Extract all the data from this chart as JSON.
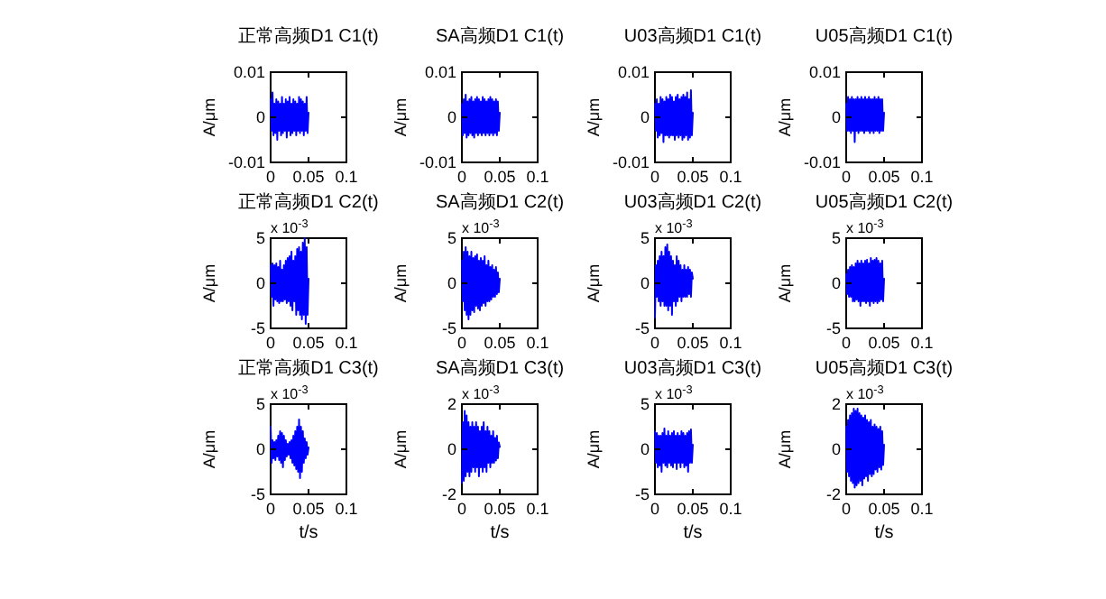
{
  "chart_data": [
    {
      "type": "line",
      "title": "正常高频D1 C1(t)",
      "ylabel": "A/μm",
      "x": [
        0,
        0.00125,
        0.0025,
        0.00375,
        0.005,
        0.00625,
        0.0075,
        0.00875,
        0.01,
        0.01125,
        0.0125,
        0.01375,
        0.015,
        0.01625,
        0.0175,
        0.01875,
        0.02,
        0.02125,
        0.0225,
        0.02375,
        0.025,
        0.02625,
        0.0275,
        0.02875,
        0.03,
        0.03125,
        0.0325,
        0.03375,
        0.035,
        0.03625,
        0.0375,
        0.03875,
        0.04,
        0.04125,
        0.0425,
        0.04375,
        0.045,
        0.04625,
        0.0475,
        0.04875,
        0.05
      ],
      "series": [
        {
          "color": "#0000ff",
          "values": [
            0.004,
            -0.003,
            0.0055,
            -0.004,
            0.003,
            -0.0035,
            0.004,
            -0.005,
            0.0035,
            -0.003,
            0.003,
            -0.004,
            0.0045,
            -0.0035,
            0.003,
            -0.003,
            0.004,
            -0.0045,
            0.0035,
            -0.003,
            0.0045,
            -0.004,
            0.003,
            -0.0035,
            0.004,
            -0.003,
            0.0035,
            -0.004,
            0.003,
            -0.003,
            0.0045,
            -0.0035,
            0.004,
            -0.003,
            0.0035,
            -0.004,
            0.003,
            -0.003,
            0.0045,
            -0.0035,
            0.001
          ]
        }
      ],
      "xlim": [
        0,
        0.1
      ],
      "xticks": [
        0,
        0.05,
        0.1
      ],
      "ylim": [
        -0.01,
        0.01
      ],
      "yticks": [
        -0.01,
        0,
        0.01
      ]
    },
    {
      "type": "line",
      "title": "SA高频D1 C1(t)",
      "ylabel": "A/μm",
      "x": [
        0,
        0.00125,
        0.0025,
        0.00375,
        0.005,
        0.00625,
        0.0075,
        0.00875,
        0.01,
        0.01125,
        0.0125,
        0.01375,
        0.015,
        0.01625,
        0.0175,
        0.01875,
        0.02,
        0.02125,
        0.0225,
        0.02375,
        0.025,
        0.02625,
        0.0275,
        0.02875,
        0.03,
        0.03125,
        0.0325,
        0.03375,
        0.035,
        0.03625,
        0.0375,
        0.03875,
        0.04,
        0.04125,
        0.0425,
        0.04375,
        0.045,
        0.04625,
        0.0475,
        0.04875,
        0.05
      ],
      "series": [
        {
          "color": "#0000ff",
          "values": [
            0.003,
            -0.004,
            0.004,
            -0.0035,
            0.005,
            -0.0045,
            0.0035,
            -0.004,
            0.004,
            -0.0035,
            0.0045,
            -0.004,
            0.0035,
            -0.0045,
            0.004,
            -0.0035,
            0.0045,
            -0.004,
            0.004,
            -0.0035,
            0.0035,
            -0.004,
            0.0045,
            -0.0035,
            0.004,
            -0.004,
            0.0035,
            -0.0035,
            0.004,
            -0.004,
            0.0045,
            -0.0035,
            0.004,
            -0.004,
            0.0035,
            -0.0035,
            0.004,
            -0.004,
            0.0035,
            -0.003,
            0.001
          ]
        }
      ],
      "xlim": [
        0,
        0.1
      ],
      "xticks": [
        0,
        0.05,
        0.1
      ],
      "ylim": [
        -0.01,
        0.01
      ],
      "yticks": [
        -0.01,
        0,
        0.01
      ]
    },
    {
      "type": "line",
      "title": "U03高频D1 C1(t)",
      "ylabel": "A/μm",
      "x": [
        0,
        0.00125,
        0.0025,
        0.00375,
        0.005,
        0.00625,
        0.0075,
        0.00875,
        0.01,
        0.01125,
        0.0125,
        0.01375,
        0.015,
        0.01625,
        0.0175,
        0.01875,
        0.02,
        0.02125,
        0.0225,
        0.02375,
        0.025,
        0.02625,
        0.0275,
        0.02875,
        0.03,
        0.03125,
        0.0325,
        0.03375,
        0.035,
        0.03625,
        0.0375,
        0.03875,
        0.04,
        0.04125,
        0.0425,
        0.04375,
        0.045,
        0.04625,
        0.0475,
        0.04875,
        0.05
      ],
      "series": [
        {
          "color": "#0000ff",
          "values": [
            0.003,
            -0.003,
            0.004,
            -0.0045,
            0.003,
            -0.004,
            0.0045,
            -0.0035,
            0.004,
            -0.0055,
            0.0035,
            -0.004,
            0.0045,
            -0.004,
            0.004,
            -0.0045,
            0.005,
            -0.004,
            0.0045,
            -0.004,
            0.0035,
            -0.005,
            0.0045,
            -0.004,
            0.005,
            -0.0045,
            0.004,
            -0.004,
            0.0045,
            -0.005,
            0.005,
            -0.0045,
            0.0045,
            -0.004,
            0.0055,
            -0.005,
            0.004,
            -0.0045,
            0.006,
            -0.004,
            0.001
          ]
        }
      ],
      "xlim": [
        0,
        0.1
      ],
      "xticks": [
        0,
        0.05,
        0.1
      ],
      "ylim": [
        -0.01,
        0.01
      ],
      "yticks": [
        -0.01,
        0,
        0.01
      ]
    },
    {
      "type": "line",
      "title": "U05高频D1 C1(t)",
      "ylabel": "A/μm",
      "x": [
        0,
        0.00125,
        0.0025,
        0.00375,
        0.005,
        0.00625,
        0.0075,
        0.00875,
        0.01,
        0.01125,
        0.0125,
        0.01375,
        0.015,
        0.01625,
        0.0175,
        0.01875,
        0.02,
        0.02125,
        0.0225,
        0.02375,
        0.025,
        0.02625,
        0.0275,
        0.02875,
        0.03,
        0.03125,
        0.0325,
        0.03375,
        0.035,
        0.03625,
        0.0375,
        0.03875,
        0.04,
        0.04125,
        0.0425,
        0.04375,
        0.045,
        0.04625,
        0.0475,
        0.04875,
        0.05
      ],
      "series": [
        {
          "color": "#0000ff",
          "values": [
            0.003,
            -0.003,
            0.0045,
            -0.003,
            0.004,
            -0.0035,
            0.0045,
            -0.003,
            0.004,
            -0.0055,
            0.004,
            -0.003,
            0.0045,
            -0.0035,
            0.004,
            -0.003,
            0.0045,
            -0.003,
            0.004,
            -0.0035,
            0.0045,
            -0.003,
            0.004,
            -0.003,
            0.0045,
            -0.0035,
            0.004,
            -0.003,
            0.004,
            -0.0035,
            0.0045,
            -0.003,
            0.004,
            -0.003,
            0.0045,
            -0.0035,
            0.004,
            -0.003,
            0.004,
            -0.003,
            0.001
          ]
        }
      ],
      "xlim": [
        0,
        0.1
      ],
      "xticks": [
        0,
        0.05,
        0.1
      ],
      "ylim": [
        -0.01,
        0.01
      ],
      "yticks": [
        -0.01,
        0,
        0.01
      ]
    },
    {
      "type": "line",
      "title": "正常高频D1 C2(t)",
      "ylabel": "A/μm",
      "annotations": [
        "x 10$^{-3}$"
      ],
      "x": [
        0,
        0.00125,
        0.0025,
        0.00375,
        0.005,
        0.00625,
        0.0075,
        0.00875,
        0.01,
        0.01125,
        0.0125,
        0.01375,
        0.015,
        0.01625,
        0.0175,
        0.01875,
        0.02,
        0.02125,
        0.0225,
        0.02375,
        0.025,
        0.02625,
        0.0275,
        0.02875,
        0.03,
        0.03125,
        0.0325,
        0.03375,
        0.035,
        0.03625,
        0.0375,
        0.03875,
        0.04,
        0.04125,
        0.0425,
        0.04375,
        0.045,
        0.04625,
        0.0475,
        0.04875,
        0.05
      ],
      "series": [
        {
          "color": "#0000ff",
          "values": [
            2,
            -1.5,
            2.2,
            -2.5,
            2,
            -1.8,
            2.2,
            -2,
            1.8,
            -2.2,
            2.5,
            -2,
            1.5,
            -2,
            2,
            -1.8,
            2.5,
            -2.2,
            2.8,
            -2,
            3,
            -2.5,
            3.5,
            -3,
            2.5,
            -2,
            3,
            -3.5,
            3.8,
            -3,
            4,
            -3.5,
            3.5,
            -4,
            4.5,
            -3.5,
            5,
            -4.5,
            4,
            -3.5,
            0.5
          ]
        }
      ],
      "xlim": [
        0,
        0.1
      ],
      "xticks": [
        0,
        0.05,
        0.1
      ],
      "ylim": [
        -5,
        5
      ],
      "yticks": [
        -5,
        0,
        5
      ]
    },
    {
      "type": "line",
      "title": "SA高频D1 C2(t)",
      "ylabel": "A/μm",
      "annotations": [
        "x 10$^{-3}$"
      ],
      "x": [
        0,
        0.00125,
        0.0025,
        0.00375,
        0.005,
        0.00625,
        0.0075,
        0.00875,
        0.01,
        0.01125,
        0.0125,
        0.01375,
        0.015,
        0.01625,
        0.0175,
        0.01875,
        0.02,
        0.02125,
        0.0225,
        0.02375,
        0.025,
        0.02625,
        0.0275,
        0.02875,
        0.03,
        0.03125,
        0.0325,
        0.03375,
        0.035,
        0.03625,
        0.0375,
        0.03875,
        0.04,
        0.04125,
        0.0425,
        0.04375,
        0.045,
        0.04625,
        0.0475,
        0.04875,
        0.05
      ],
      "series": [
        {
          "color": "#0000ff",
          "values": [
            2.5,
            -2,
            3.5,
            -3,
            4,
            -3.5,
            3.5,
            -4,
            3,
            -3.5,
            3.5,
            -3,
            2.8,
            -3.2,
            3,
            -2.5,
            3.2,
            -2.8,
            2.5,
            -3,
            2.8,
            -2.5,
            2.5,
            -2.2,
            3,
            -2.5,
            2,
            -2,
            2.5,
            -2,
            1.8,
            -1.8,
            2,
            -1.5,
            1.5,
            -1.5,
            1.8,
            -1.2,
            1.2,
            -1,
            0.5
          ]
        }
      ],
      "xlim": [
        0,
        0.1
      ],
      "xticks": [
        0,
        0.05,
        0.1
      ],
      "ylim": [
        -5,
        5
      ],
      "yticks": [
        -5,
        0,
        5
      ]
    },
    {
      "type": "line",
      "title": "U03高频D1 C2(t)",
      "ylabel": "A/μm",
      "annotations": [
        "x 10$^{-3}$"
      ],
      "x": [
        0,
        0.00125,
        0.0025,
        0.00375,
        0.005,
        0.00625,
        0.0075,
        0.00875,
        0.01,
        0.01125,
        0.0125,
        0.01375,
        0.015,
        0.01625,
        0.0175,
        0.01875,
        0.02,
        0.02125,
        0.0225,
        0.02375,
        0.025,
        0.02625,
        0.0275,
        0.02875,
        0.03,
        0.03125,
        0.0325,
        0.03375,
        0.035,
        0.03625,
        0.0375,
        0.03875,
        0.04,
        0.04125,
        0.0425,
        0.04375,
        0.045,
        0.04625,
        0.0475,
        0.04875,
        0.05
      ],
      "series": [
        {
          "color": "#0000ff",
          "values": [
            -3.8,
            2,
            -1.5,
            2.5,
            -2,
            3,
            -2.5,
            3.5,
            -2,
            3,
            -2.5,
            4,
            -2.5,
            4.3,
            -3,
            3.5,
            -2.5,
            3,
            -3.5,
            2.5,
            -2,
            2,
            -2.5,
            3,
            -2,
            2.5,
            -1.5,
            2,
            -2,
            1.5,
            -1.5,
            2,
            -1.5,
            1.5,
            -1.5,
            1.8,
            -1.2,
            1.5,
            -1.5,
            1.2,
            0.5
          ]
        }
      ],
      "xlim": [
        0,
        0.1
      ],
      "xticks": [
        0,
        0.05,
        0.1
      ],
      "ylim": [
        -5,
        5
      ],
      "yticks": [
        -5,
        0,
        5
      ]
    },
    {
      "type": "line",
      "title": "U05高频D1 C2(t)",
      "ylabel": "A/μm",
      "annotations": [
        "x 10$^{-3}$"
      ],
      "x": [
        0,
        0.00125,
        0.0025,
        0.00375,
        0.005,
        0.00625,
        0.0075,
        0.00875,
        0.01,
        0.01125,
        0.0125,
        0.01375,
        0.015,
        0.01625,
        0.0175,
        0.01875,
        0.02,
        0.02125,
        0.0225,
        0.02375,
        0.025,
        0.02625,
        0.0275,
        0.02875,
        0.03,
        0.03125,
        0.0325,
        0.03375,
        0.035,
        0.03625,
        0.0375,
        0.03875,
        0.04,
        0.04125,
        0.0425,
        0.04375,
        0.045,
        0.04625,
        0.0475,
        0.04875,
        0.05
      ],
      "series": [
        {
          "color": "#0000ff",
          "values": [
            1,
            -1.2,
            1.5,
            -1.5,
            1.8,
            -1.5,
            2,
            -2,
            1.8,
            -2,
            2.2,
            -1.8,
            2.5,
            -2,
            2.2,
            -2.5,
            2.5,
            -2,
            2.2,
            -2,
            2.5,
            -2.2,
            2.6,
            -2,
            2.2,
            -2.5,
            2.8,
            -2,
            2.5,
            -2.2,
            2.6,
            -2,
            2.8,
            -2.2,
            2.5,
            -2,
            2.2,
            -1.8,
            2.5,
            -2,
            0.5
          ]
        }
      ],
      "xlim": [
        0,
        0.1
      ],
      "xticks": [
        0,
        0.05,
        0.1
      ],
      "ylim": [
        -5,
        5
      ],
      "yticks": [
        -5,
        0,
        5
      ]
    },
    {
      "type": "line",
      "title": "正常高频D1 C3(t)",
      "xlabel": "t/s",
      "ylabel": "A/μm",
      "annotations": [
        "x 10$^{-3}$"
      ],
      "x": [
        0,
        0.00125,
        0.0025,
        0.00375,
        0.005,
        0.00625,
        0.0075,
        0.00875,
        0.01,
        0.01125,
        0.0125,
        0.01375,
        0.015,
        0.01625,
        0.0175,
        0.01875,
        0.02,
        0.02125,
        0.0225,
        0.02375,
        0.025,
        0.02625,
        0.0275,
        0.02875,
        0.03,
        0.03125,
        0.0325,
        0.03375,
        0.035,
        0.03625,
        0.0375,
        0.03875,
        0.04,
        0.04125,
        0.0425,
        0.04375,
        0.045,
        0.04625,
        0.0475,
        0.04875,
        0.05
      ],
      "series": [
        {
          "color": "#0000ff",
          "values": [
            2.5,
            -1.5,
            1,
            -1,
            0.8,
            -1.2,
            1,
            -0.8,
            1.5,
            -1.2,
            2,
            -1.5,
            1.8,
            -2,
            1.5,
            -1.2,
            1,
            -0.8,
            0.6,
            -0.6,
            0.8,
            -1,
            1,
            -1.5,
            1.5,
            -1.8,
            2,
            -2.2,
            2.5,
            -2.5,
            3.3,
            -3.2,
            2.5,
            -2.5,
            2,
            -1.5,
            1.2,
            -1,
            0.8,
            -0.6,
            0.2
          ]
        }
      ],
      "xlim": [
        0,
        0.1
      ],
      "xticks": [
        0,
        0.05,
        0.1
      ],
      "ylim": [
        -5,
        5
      ],
      "yticks": [
        -5,
        0,
        5
      ]
    },
    {
      "type": "line",
      "title": "SA高频D1 C3(t)",
      "xlabel": "t/s",
      "ylabel": "A/μm",
      "annotations": [
        "x 10$^{-3}$"
      ],
      "x": [
        0,
        0.00125,
        0.0025,
        0.00375,
        0.005,
        0.00625,
        0.0075,
        0.00875,
        0.01,
        0.01125,
        0.0125,
        0.01375,
        0.015,
        0.01625,
        0.0175,
        0.01875,
        0.02,
        0.02125,
        0.0225,
        0.02375,
        0.025,
        0.02625,
        0.0275,
        0.02875,
        0.03,
        0.03125,
        0.0325,
        0.03375,
        0.035,
        0.03625,
        0.0375,
        0.03875,
        0.04,
        0.04125,
        0.0425,
        0.04375,
        0.045,
        0.04625,
        0.0475,
        0.04875,
        0.05
      ],
      "series": [
        {
          "color": "#0000ff",
          "values": [
            -1.5,
            1.2,
            -1.4,
            1.7,
            -1.2,
            1.5,
            -1,
            1.2,
            -1.2,
            1,
            -1,
            1.2,
            -0.8,
            1,
            -1,
            1.2,
            -0.8,
            1,
            -1.2,
            0.8,
            -0.8,
            1,
            -1,
            1.2,
            -0.8,
            0.8,
            -1,
            1,
            -0.6,
            0.8,
            -0.8,
            0.6,
            -0.6,
            0.8,
            -0.6,
            0.5,
            -0.5,
            0.6,
            -0.4,
            0.3,
            0.1
          ]
        }
      ],
      "xlim": [
        0,
        0.1
      ],
      "xticks": [
        0,
        0.05,
        0.1
      ],
      "ylim": [
        -2,
        2
      ],
      "yticks": [
        -2,
        0,
        2
      ]
    },
    {
      "type": "line",
      "title": "U03高频D1 C3(t)",
      "xlabel": "t/s",
      "ylabel": "A/μm",
      "annotations": [
        "x 10$^{-3}$"
      ],
      "x": [
        0,
        0.00125,
        0.0025,
        0.00375,
        0.005,
        0.00625,
        0.0075,
        0.00875,
        0.01,
        0.01125,
        0.0125,
        0.01375,
        0.015,
        0.01625,
        0.0175,
        0.01875,
        0.02,
        0.02125,
        0.0225,
        0.02375,
        0.025,
        0.02625,
        0.0275,
        0.02875,
        0.03,
        0.03125,
        0.0325,
        0.03375,
        0.035,
        0.03625,
        0.0375,
        0.03875,
        0.04,
        0.04125,
        0.0425,
        0.04375,
        0.045,
        0.04625,
        0.0475,
        0.04875,
        0.05
      ],
      "series": [
        {
          "color": "#0000ff",
          "values": [
            2,
            -1.5,
            1.8,
            -2,
            1.5,
            -1.8,
            1.5,
            -2.5,
            1.8,
            -1.5,
            2.3,
            -1.8,
            1.5,
            -2,
            2,
            -1.5,
            1.5,
            -1.8,
            1.8,
            -2,
            2,
            -1.5,
            1.5,
            -2.2,
            1.8,
            -1.5,
            1.5,
            -2,
            2,
            -1.5,
            1.8,
            -2,
            1.5,
            -1.8,
            1.8,
            -2.5,
            2,
            -1.5,
            2.2,
            -1.5,
            0.5
          ]
        }
      ],
      "xlim": [
        0,
        0.1
      ],
      "xticks": [
        0,
        0.05,
        0.1
      ],
      "ylim": [
        -5,
        5
      ],
      "yticks": [
        -5,
        0,
        5
      ]
    },
    {
      "type": "line",
      "title": "U05高频D1 C3(t)",
      "xlabel": "t/s",
      "ylabel": "A/μm",
      "annotations": [
        "x 10$^{-3}$"
      ],
      "x": [
        0,
        0.00125,
        0.0025,
        0.00375,
        0.005,
        0.00625,
        0.0075,
        0.00875,
        0.01,
        0.01125,
        0.0125,
        0.01375,
        0.015,
        0.01625,
        0.0175,
        0.01875,
        0.02,
        0.02125,
        0.0225,
        0.02375,
        0.025,
        0.02625,
        0.0275,
        0.02875,
        0.03,
        0.03125,
        0.0325,
        0.03375,
        0.035,
        0.03625,
        0.0375,
        0.03875,
        0.04,
        0.04125,
        0.0425,
        0.04375,
        0.045,
        0.04625,
        0.0475,
        0.04875,
        0.05
      ],
      "series": [
        {
          "color": "#0000ff",
          "values": [
            1,
            -1,
            1.3,
            -1.2,
            1.5,
            -1.4,
            1.6,
            -1.5,
            1.8,
            -1.7,
            1.7,
            -1.6,
            1.8,
            -1.5,
            1.6,
            -1.4,
            1.5,
            -1.6,
            1.4,
            -1.3,
            1.5,
            -1.2,
            1.3,
            -1.4,
            1.2,
            -1.1,
            1.3,
            -1.2,
            1,
            -1.1,
            1.1,
            -0.9,
            1,
            -1,
            0.9,
            -0.8,
            1,
            -0.9,
            0.8,
            -0.7,
            0.2
          ]
        }
      ],
      "xlim": [
        0,
        0.1
      ],
      "xticks": [
        0,
        0.05,
        0.1
      ],
      "ylim": [
        -2,
        2
      ],
      "yticks": [
        -2,
        0,
        2
      ]
    }
  ]
}
